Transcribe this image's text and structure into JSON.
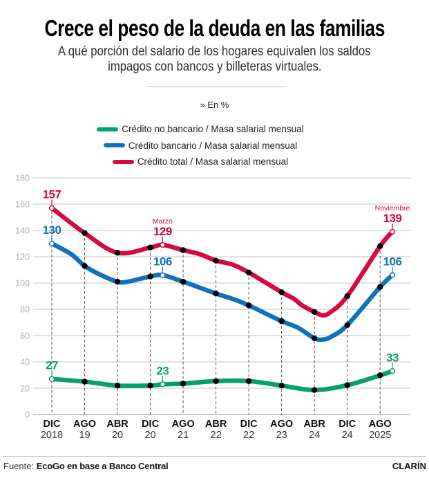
{
  "chart_data": {
    "type": "line",
    "title": "Crece el peso de la deuda en las familias",
    "subtitle_lines": [
      "A qué porción del salario de los hogares equivalen los saldos",
      "impagos con bancos y billeteras virtuales."
    ],
    "unit_label": "» En %",
    "xlabel": "",
    "ylabel": "",
    "ylim": [
      0,
      180
    ],
    "y_ticks": [
      "0",
      "20",
      "40",
      "60",
      "80",
      "100",
      "120",
      "140",
      "160",
      "180"
    ],
    "grid": true,
    "legend_position": "top-center",
    "x_axis_unit": "months since Dec 2018",
    "x_ticks": [
      {
        "month": "DIC",
        "year": "2018",
        "m": 0
      },
      {
        "month": "AGO",
        "year": "19",
        "m": 8
      },
      {
        "month": "ABR",
        "year": "20",
        "m": 16
      },
      {
        "month": "DIC",
        "year": "20",
        "m": 24
      },
      {
        "month": "AGO",
        "year": "21",
        "m": 32
      },
      {
        "month": "ABR",
        "year": "22",
        "m": 40
      },
      {
        "month": "DIC",
        "year": "22",
        "m": 48
      },
      {
        "month": "AGO",
        "year": "23",
        "m": 56
      },
      {
        "month": "ABR",
        "year": "24",
        "m": 64
      },
      {
        "month": "DIC",
        "year": "24",
        "m": 72
      },
      {
        "month": "AGO",
        "year": "2025",
        "m": 80
      }
    ],
    "series": [
      {
        "name": "Crédito no bancario / Masa salarial mensual",
        "color": "#06a06c",
        "points": [
          [
            0,
            27
          ],
          [
            8,
            25
          ],
          [
            16,
            22
          ],
          [
            24,
            22
          ],
          [
            27,
            23
          ],
          [
            32,
            23.5
          ],
          [
            40,
            25.4
          ],
          [
            48,
            25.4
          ],
          [
            56,
            22
          ],
          [
            64,
            18.6
          ],
          [
            72,
            22.3
          ],
          [
            80,
            29.8
          ],
          [
            83,
            33
          ]
        ],
        "highlights": [
          {
            "m": 0,
            "value": 27,
            "label": "27"
          },
          {
            "m": 27,
            "value": 23,
            "label": "23"
          },
          {
            "m": 83,
            "value": 33,
            "label": "33"
          }
        ]
      },
      {
        "name": "Crédito bancario / Masa salarial mensual",
        "color": "#0f72bb",
        "points": [
          [
            0,
            130
          ],
          [
            4.7,
            122
          ],
          [
            8,
            113
          ],
          [
            12,
            106
          ],
          [
            16,
            101
          ],
          [
            18.5,
            101
          ],
          [
            24,
            105
          ],
          [
            27,
            106
          ],
          [
            32,
            101
          ],
          [
            40,
            92
          ],
          [
            44,
            88
          ],
          [
            48,
            83
          ],
          [
            56,
            71
          ],
          [
            60,
            66
          ],
          [
            64,
            58
          ],
          [
            66,
            57
          ],
          [
            68,
            59
          ],
          [
            72,
            68
          ],
          [
            80,
            97
          ],
          [
            83,
            106
          ]
        ],
        "highlights": [
          {
            "m": 0,
            "value": 130,
            "label": "130"
          },
          {
            "m": 27,
            "value": 106,
            "label": "106"
          },
          {
            "m": 83,
            "value": 106,
            "label": "106"
          }
        ]
      },
      {
        "name": "Crédito total / Masa salarial mensual",
        "color": "#d40a40",
        "points": [
          [
            0,
            157
          ],
          [
            8,
            138
          ],
          [
            16,
            123
          ],
          [
            24,
            127
          ],
          [
            27,
            129
          ],
          [
            32,
            125
          ],
          [
            36,
            122
          ],
          [
            40,
            117
          ],
          [
            44,
            114
          ],
          [
            48,
            108
          ],
          [
            56,
            93
          ],
          [
            59,
            88
          ],
          [
            61,
            83
          ],
          [
            64,
            78
          ],
          [
            66,
            75.5
          ],
          [
            68,
            78
          ],
          [
            72,
            90
          ],
          [
            80,
            128
          ],
          [
            83,
            139
          ]
        ],
        "highlights": [
          {
            "m": 0,
            "value": 157,
            "label": "157"
          },
          {
            "m": 27,
            "value": 129,
            "label": "129",
            "note": "Marzo"
          },
          {
            "m": 83,
            "value": 139,
            "label": "139",
            "note": "Noviembre"
          }
        ]
      }
    ]
  },
  "footer": {
    "source_label": "Fuente: ",
    "source": "EcoGo en base a Banco Central",
    "brand": "CLARÍN"
  }
}
